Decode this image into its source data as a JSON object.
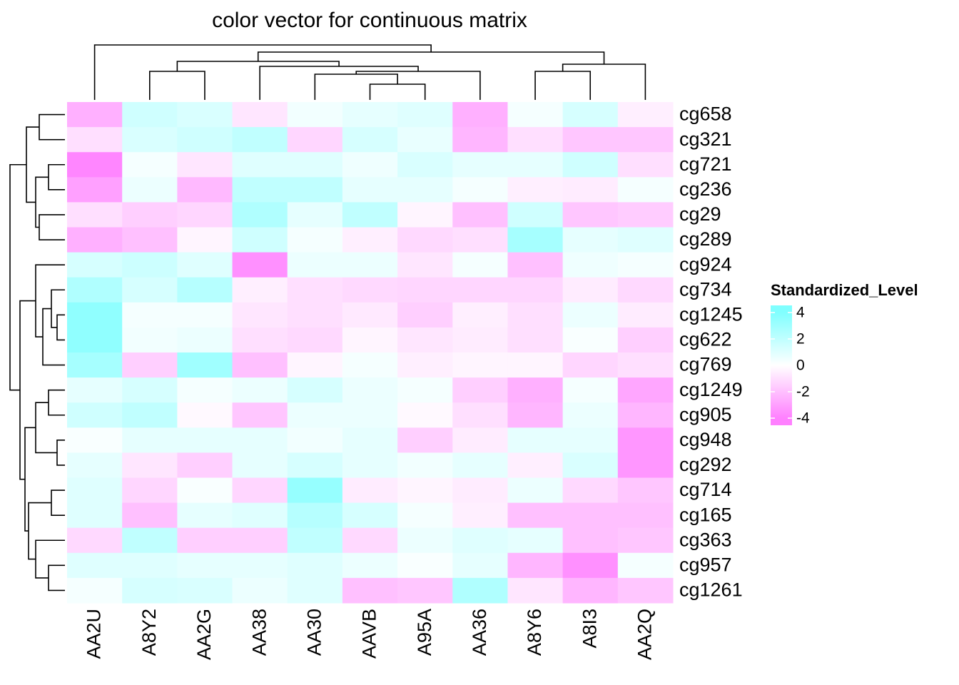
{
  "chart_data": {
    "type": "heatmap",
    "title": "color vector for continuous matrix",
    "columns": [
      "AA2U",
      "A8Y2",
      "AA2G",
      "AA38",
      "AA30",
      "AAVB",
      "A95A",
      "AA36",
      "A8Y6",
      "A8I3",
      "AA2Q"
    ],
    "rows": [
      "cg658",
      "cg321",
      "cg721",
      "cg236",
      "cg29",
      "cg289",
      "cg924",
      "cg734",
      "cg1245",
      "cg622",
      "cg769",
      "cg1249",
      "cg905",
      "cg948",
      "cg292",
      "cg714",
      "cg165",
      "cg363",
      "cg957",
      "cg1261"
    ],
    "values": [
      [
        -2.5,
        1.5,
        1.2,
        -0.8,
        0.4,
        0.8,
        1.0,
        -2.5,
        0.3,
        1.3,
        -0.5
      ],
      [
        -1.0,
        1.2,
        1.5,
        2.0,
        -1.3,
        1.3,
        0.7,
        -2.3,
        -1.0,
        -1.8,
        -1.8
      ],
      [
        -3.8,
        0.3,
        -0.8,
        1.0,
        1.0,
        0.5,
        1.2,
        0.8,
        0.8,
        1.5,
        -1.0
      ],
      [
        -3.0,
        0.6,
        -2.2,
        2.0,
        2.0,
        0.8,
        0.8,
        0.3,
        -0.5,
        -0.6,
        0.3
      ],
      [
        -1.0,
        -1.5,
        -1.3,
        2.5,
        0.8,
        2.0,
        -0.3,
        -2.0,
        1.5,
        -1.8,
        -1.6
      ],
      [
        -2.5,
        -2.0,
        -0.3,
        1.5,
        0.3,
        -0.5,
        -1.2,
        -1.0,
        2.8,
        0.8,
        1.0
      ],
      [
        1.3,
        1.6,
        1.0,
        -3.5,
        0.6,
        0.6,
        -0.8,
        0.3,
        -2.0,
        0.5,
        0.3
      ],
      [
        2.5,
        1.3,
        2.3,
        -0.5,
        -1.0,
        -1.2,
        -1.3,
        -1.3,
        -1.3,
        -0.6,
        -1.2
      ],
      [
        3.5,
        0.3,
        0.3,
        -0.8,
        -1.0,
        -0.7,
        -1.5,
        -0.5,
        -1.0,
        0.6,
        -0.6
      ],
      [
        3.5,
        0.4,
        0.6,
        -1.0,
        -1.2,
        -0.3,
        -0.8,
        -0.6,
        -1.0,
        0.2,
        -1.5
      ],
      [
        2.8,
        -1.5,
        3.0,
        -2.0,
        -0.3,
        0.3,
        -0.5,
        -0.3,
        -0.3,
        -1.3,
        -1.0
      ],
      [
        0.8,
        1.3,
        0.3,
        0.6,
        1.3,
        0.6,
        0.3,
        -1.5,
        -2.5,
        0.3,
        -2.8
      ],
      [
        1.5,
        2.0,
        -0.2,
        -1.8,
        0.6,
        0.6,
        -0.2,
        -1.0,
        -2.3,
        0.6,
        -2.3
      ],
      [
        0.2,
        0.8,
        0.8,
        0.8,
        0.4,
        0.8,
        -1.5,
        -0.6,
        0.8,
        0.8,
        -3.3
      ],
      [
        0.8,
        -0.8,
        -1.5,
        0.8,
        1.3,
        0.8,
        0.4,
        0.8,
        -0.5,
        1.2,
        -3.3
      ],
      [
        1.0,
        -1.3,
        0.2,
        -1.3,
        3.3,
        -0.6,
        -0.3,
        -0.6,
        0.6,
        -1.2,
        -1.8
      ],
      [
        1.0,
        -2.0,
        0.8,
        1.0,
        2.3,
        1.3,
        0.3,
        -0.5,
        -2.0,
        -2.0,
        -2.0
      ],
      [
        -1.2,
        2.0,
        -1.5,
        -1.5,
        2.0,
        -1.2,
        0.6,
        1.0,
        0.8,
        -2.0,
        -1.8
      ],
      [
        1.0,
        1.0,
        0.8,
        0.8,
        1.0,
        0.6,
        0.2,
        0.8,
        -2.3,
        -3.5,
        0.3
      ],
      [
        0.3,
        1.3,
        1.2,
        0.6,
        1.0,
        -2.0,
        -1.8,
        2.5,
        -0.8,
        -2.3,
        -1.8
      ]
    ],
    "legend_title": "Standardized_Level",
    "color_scale": {
      "domain": [
        -4,
        0,
        4
      ],
      "colors": [
        "#ff80ff",
        "#ffffff",
        "#80ffff"
      ]
    },
    "legend_ticks": [
      4,
      2,
      0,
      -2,
      -4
    ]
  }
}
